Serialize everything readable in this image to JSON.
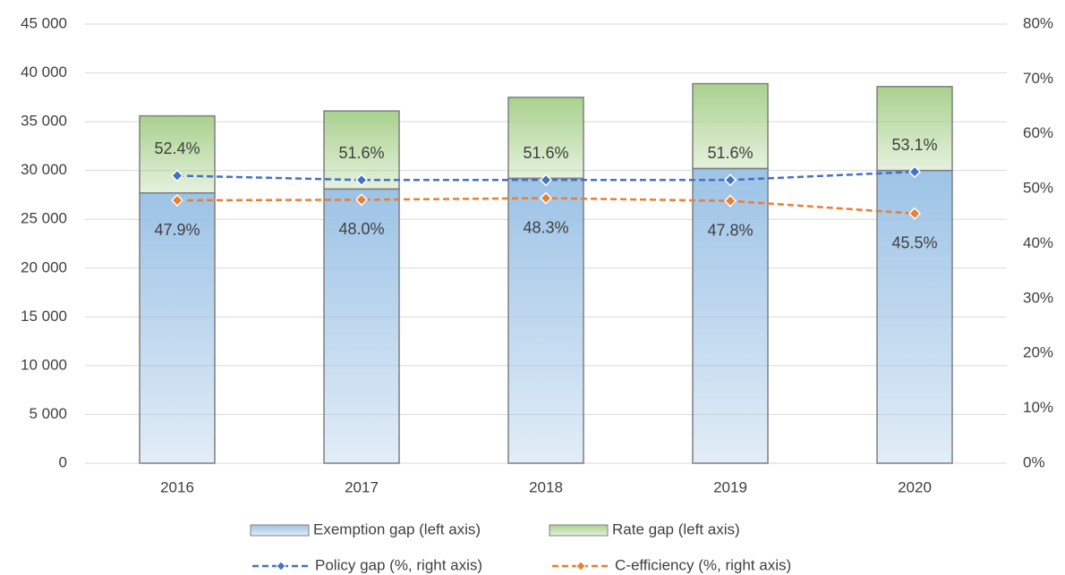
{
  "chart_data": {
    "type": "bar",
    "categories": [
      "2016",
      "2017",
      "2018",
      "2019",
      "2020"
    ],
    "stacked": true,
    "series": [
      {
        "name": "Exemption gap (left axis)",
        "type": "bar",
        "color": "#9dc3e6",
        "values": [
          27700,
          28100,
          29200,
          30200,
          30000
        ]
      },
      {
        "name": "Rate gap (left axis)",
        "type": "bar",
        "color": "#a9d18e",
        "values": [
          7900,
          8000,
          8300,
          8700,
          8600
        ]
      },
      {
        "name": "Policy gap (%, right axis)",
        "type": "line",
        "axis": "y2",
        "color": "#4472c4",
        "dashed": true,
        "marker": "diamond",
        "values": [
          52.4,
          51.6,
          51.6,
          51.6,
          53.1
        ],
        "value_labels": [
          "52.4%",
          "51.6%",
          "51.6%",
          "51.6%",
          "53.1%"
        ]
      },
      {
        "name": "C-efficiency (%, right axis)",
        "type": "line",
        "axis": "y2",
        "color": "#ed7d31",
        "dashed": true,
        "marker": "diamond",
        "values": [
          47.9,
          48.0,
          48.3,
          47.8,
          45.5
        ],
        "value_labels": [
          "47.9%",
          "48.0%",
          "48.3%",
          "47.8%",
          "45.5%"
        ]
      }
    ],
    "ylim": [
      0,
      45000
    ],
    "yticks": [
      0,
      {
        "value": 5000,
        "label": "5 000"
      },
      {
        "value": 10000,
        "label": "10 000"
      },
      {
        "value": 15000,
        "label": "15 000"
      },
      {
        "value": 20000,
        "label": "20 000"
      },
      {
        "value": 25000,
        "label": "25 000"
      },
      {
        "value": 30000,
        "label": "30 000"
      },
      {
        "value": 35000,
        "label": "35 000"
      },
      {
        "value": 40000,
        "label": "40 000"
      },
      {
        "value": 45000,
        "label": "45 000"
      }
    ],
    "y2lim": [
      0,
      80
    ],
    "y2ticks": [
      {
        "value": 0,
        "label": "0%"
      },
      {
        "value": 10,
        "label": "10%"
      },
      {
        "value": 20,
        "label": "20%"
      },
      {
        "value": 30,
        "label": "30%"
      },
      {
        "value": 40,
        "label": "40%"
      },
      {
        "value": 50,
        "label": "50%"
      },
      {
        "value": 60,
        "label": "60%"
      },
      {
        "value": 70,
        "label": "70%"
      },
      {
        "value": 80,
        "label": "80%"
      }
    ],
    "grid": true,
    "legend": "bottom"
  }
}
